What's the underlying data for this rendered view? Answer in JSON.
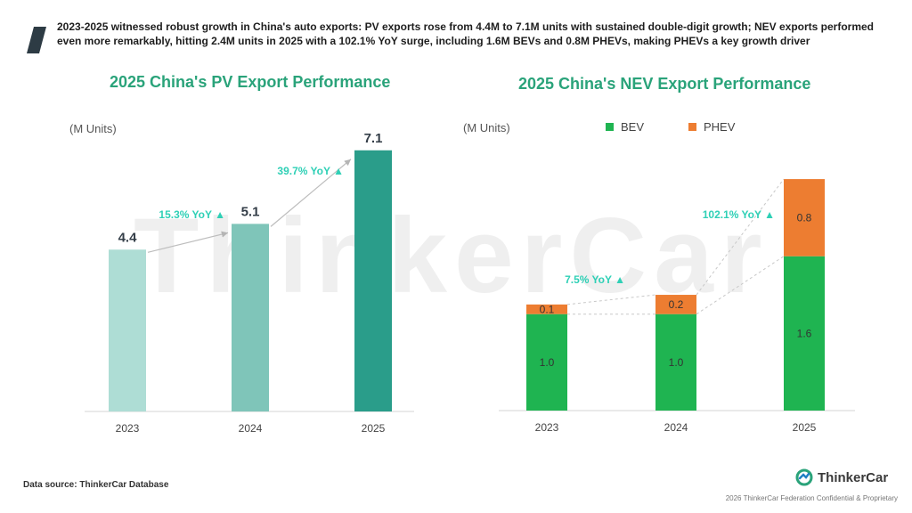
{
  "headline": "2023-2025 witnessed robust growth in China's auto exports: PV exports rose from 4.4M to 7.1M units with sustained double-digit growth; NEV exports performed even more remarkably, hitting 2.4M units in 2025 with a 102.1% YoY surge, including 1.6M BEVs and 0.8M PHEVs, making PHEVs a key growth driver",
  "watermark": "ThinkerCar",
  "source": "Data source: ThinkerCar Database",
  "brand": {
    "name": "ThinkerCar"
  },
  "footer_note": "2026 ThinkerCar Federation Confidential & Proprietary",
  "colors": {
    "title": "#2aa37a",
    "pv_2023": "#aeddd5",
    "pv_2024": "#7fc5b9",
    "pv_2025": "#2a9d8a",
    "bev": "#1fb451",
    "phev": "#ed7d31",
    "yoy": "#2fd0b6"
  },
  "pv_chart": {
    "title": "2025 China's PV Export Performance",
    "unit_label": "(M Units)"
  },
  "nev_chart": {
    "title": "2025 China's NEV Export Performance",
    "unit_label": "(M Units)",
    "legend": [
      {
        "label": "BEV"
      },
      {
        "label": "PHEV"
      }
    ]
  },
  "chart_data": [
    {
      "type": "bar",
      "title": "2025 China's PV Export Performance",
      "ylabel": "(M Units)",
      "categories": [
        "2023",
        "2024",
        "2025"
      ],
      "values": [
        4.4,
        5.1,
        7.1
      ],
      "value_labels": [
        "4.4",
        "5.1",
        "7.1"
      ],
      "yoy_labels": [
        "15.3% YoY ▲",
        "39.7% YoY ▲"
      ],
      "ylim": [
        0,
        8
      ]
    },
    {
      "type": "bar",
      "stacked": true,
      "title": "2025 China's NEV Export Performance",
      "ylabel": "(M Units)",
      "categories": [
        "2023",
        "2024",
        "2025"
      ],
      "series": [
        {
          "name": "BEV",
          "values": [
            1.0,
            1.0,
            1.6
          ],
          "labels": [
            "1.0",
            "1.0",
            "1.6"
          ]
        },
        {
          "name": "PHEV",
          "values": [
            0.1,
            0.2,
            0.8
          ],
          "labels": [
            "0.1",
            "0.2",
            "0.8"
          ]
        }
      ],
      "yoy_labels": [
        "7.5% YoY ▲",
        "102.1% YoY ▲"
      ],
      "ylim": [
        0,
        2.6
      ]
    }
  ]
}
